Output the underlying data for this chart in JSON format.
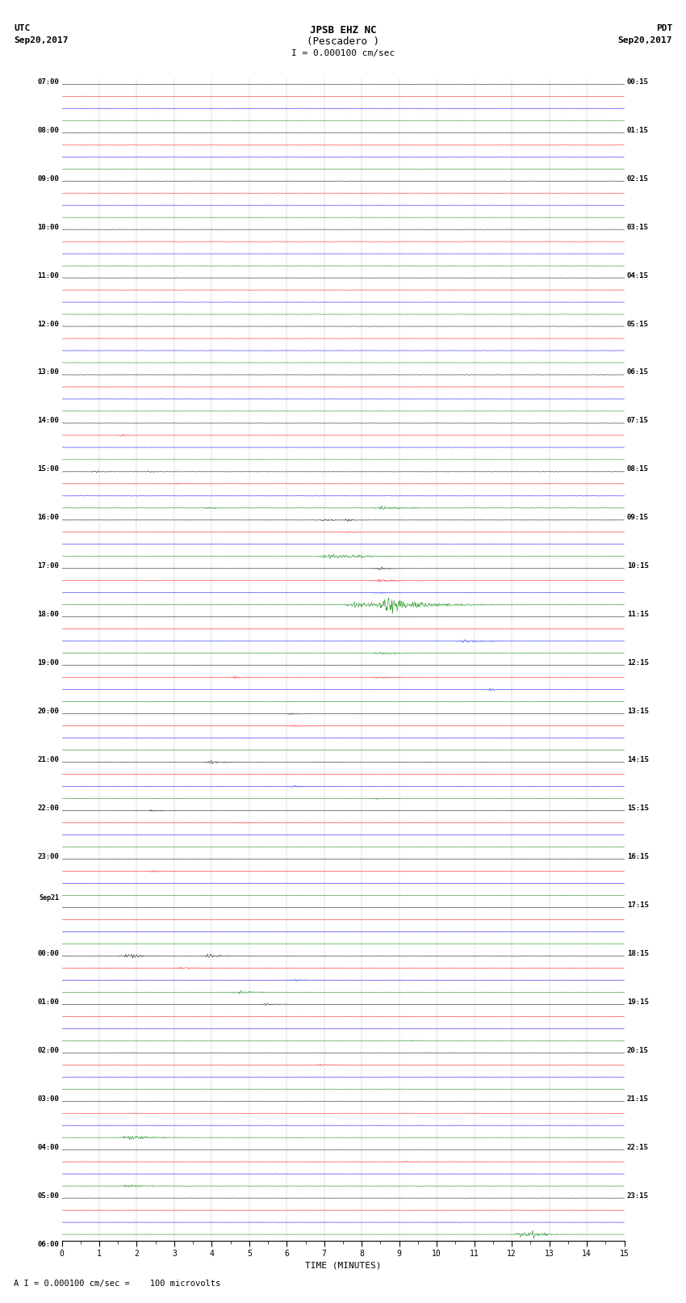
{
  "title_line1": "JPSB EHZ NC",
  "title_line2": "(Pescadero )",
  "scale_label": "I = 0.000100 cm/sec",
  "utc_label": "UTC",
  "pdt_label": "PDT",
  "date_left": "Sep20,2017",
  "date_right": "Sep20,2017",
  "bottom_note": "A I = 0.000100 cm/sec =    100 microvolts",
  "xlabel": "TIME (MINUTES)",
  "bg_color": "#ffffff",
  "trace_colors": [
    "black",
    "red",
    "blue",
    "green"
  ],
  "n_hours": 24,
  "traces_per_hour": 4,
  "minutes_per_row": 15,
  "left_times_utc": [
    "07:00",
    "08:00",
    "09:00",
    "10:00",
    "11:00",
    "12:00",
    "13:00",
    "14:00",
    "15:00",
    "16:00",
    "17:00",
    "18:00",
    "19:00",
    "20:00",
    "21:00",
    "22:00",
    "23:00",
    "Sep21",
    "00:00",
    "01:00",
    "02:00",
    "03:00",
    "04:00",
    "05:00",
    "06:00"
  ],
  "right_times_pdt": [
    "00:15",
    "01:15",
    "02:15",
    "03:15",
    "04:15",
    "05:15",
    "06:15",
    "07:15",
    "08:15",
    "09:15",
    "10:15",
    "11:15",
    "12:15",
    "13:15",
    "14:15",
    "15:15",
    "16:15",
    "17:15",
    "18:15",
    "19:15",
    "20:15",
    "21:15",
    "22:15",
    "23:15"
  ],
  "sep21_row": 17,
  "fig_width": 8.5,
  "fig_height": 16.13,
  "dpi": 100,
  "noise_amplitude": 0.008,
  "seed": 42
}
